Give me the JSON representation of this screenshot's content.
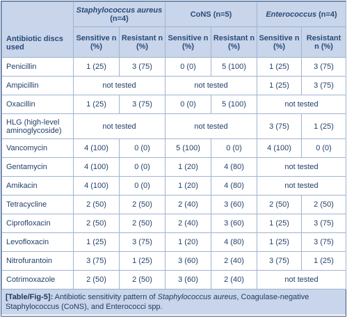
{
  "header": {
    "antibiotic_col": "Antibiotic discs used",
    "groups": [
      {
        "name": "Staphylococcus aureus",
        "n": "(n=4)"
      },
      {
        "name": "CoNS",
        "n": "(n=5)"
      },
      {
        "name": "Enterococcus",
        "n": "(n=4)"
      }
    ],
    "sensitive": "Sensitive n (%)",
    "resistant": "Resistant n (%)"
  },
  "rows": [
    {
      "name": "Penicillin",
      "cells": [
        "1 (25)",
        "3 (75)",
        "0 (0)",
        "5 (100)",
        "1 (25)",
        "3 (75)"
      ]
    },
    {
      "name": "Ampicillin",
      "cells": [
        "not tested",
        "not tested",
        "1 (25)",
        "3 (75)"
      ]
    },
    {
      "name": "Oxacillin",
      "cells": [
        "1 (25)",
        "3 (75)",
        "0 (0)",
        "5 (100)",
        "not tested"
      ]
    },
    {
      "name": "HLG (high-level aminoglycoside)",
      "cells": [
        "not tested",
        "not tested",
        "3 (75)",
        "1 (25)"
      ]
    },
    {
      "name": "Vancomycin",
      "cells": [
        "4 (100)",
        "0 (0)",
        "5 (100)",
        "0 (0)",
        "4 (100)",
        "0 (0)"
      ]
    },
    {
      "name": "Gentamycin",
      "cells": [
        "4 (100)",
        "0 (0)",
        "1 (20)",
        "4 (80)",
        "not tested"
      ]
    },
    {
      "name": "Amikacin",
      "cells": [
        "4 (100)",
        "0 (0)",
        "1 (20)",
        "4 (80)",
        "not tested"
      ]
    },
    {
      "name": "Tetracycline",
      "cells": [
        "2 (50)",
        "2 (50)",
        "2 (40)",
        "3 (60)",
        "2 (50)",
        "2 (50)"
      ]
    },
    {
      "name": "Ciprofloxacin",
      "cells": [
        "2 (50)",
        "2 (50)",
        "2 (40)",
        "3 (60)",
        "1 (25)",
        "3 (75)"
      ]
    },
    {
      "name": "Levofloxacin",
      "cells": [
        "1 (25)",
        "3 (75)",
        "1 (20)",
        "4 (80)",
        "1 (25)",
        "3 (75)"
      ]
    },
    {
      "name": "Nitrofurantoin",
      "cells": [
        "3 (75)",
        "1 (25)",
        "3 (60)",
        "2 (40)",
        "3 (75)",
        "1 (25)"
      ]
    },
    {
      "name": "Cotrimoxazole",
      "cells": [
        "2 (50)",
        "2 (50)",
        "3 (60)",
        "2 (40)",
        "not tested"
      ]
    }
  ],
  "caption": {
    "label": "[Table/Fig-5]:",
    "text1": " Antibiotic sensitivity pattern of ",
    "italic": "Staphylococcus aureus",
    "text2": ", Coagulase-negative Staphylococcus (CoNS), and Enterococci spp."
  }
}
